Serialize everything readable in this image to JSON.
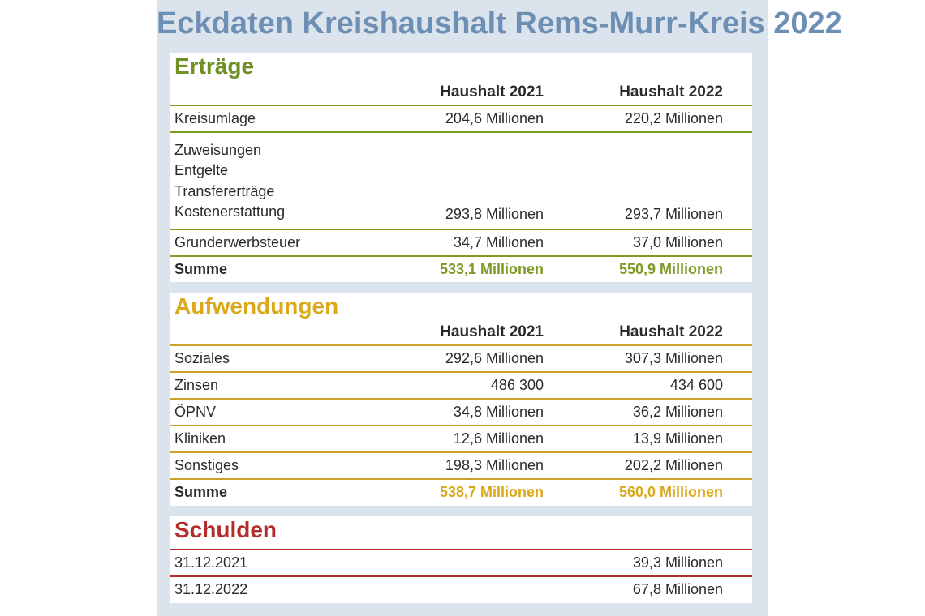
{
  "title": "Eckdaten Kreishaushalt Rems-Murr-Kreis 2022",
  "colors": {
    "title": "#6d8fb4",
    "ertraege": "#6f9024",
    "aufwendungen": "#d9a91a",
    "schulden": "#b32b2b",
    "background": "#dbe3ec"
  },
  "ertraege": {
    "heading": "Erträge",
    "col1": "Haushalt 2021",
    "col2": "Haushalt 2022",
    "rows": [
      {
        "label": "Kreisumlage",
        "v2021": "204,6 Millionen",
        "v2022": "220,2 Millionen"
      },
      {
        "labels": [
          "Zuweisungen",
          "Entgelte",
          "Transfererträge",
          "Kostenerstattung"
        ],
        "v2021": "293,8 Millionen",
        "v2022": "293,7 Millionen"
      },
      {
        "label": "Grunderwerbsteuer",
        "v2021": "34,7 Millionen",
        "v2022": "37,0 Millionen"
      }
    ],
    "sum": {
      "label": "Summe",
      "v2021": "533,1 Millionen",
      "v2022": "550,9 Millionen"
    }
  },
  "aufwendungen": {
    "heading": "Aufwendungen",
    "col1": "Haushalt 2021",
    "col2": "Haushalt 2022",
    "rows": [
      {
        "label": "Soziales",
        "v2021": "292,6 Millionen",
        "v2022": "307,3 Millionen"
      },
      {
        "label": "Zinsen",
        "v2021": "486 300",
        "v2022": "434 600"
      },
      {
        "label": "ÖPNV",
        "v2021": "34,8 Millionen",
        "v2022": "36,2 Millionen"
      },
      {
        "label": "Kliniken",
        "v2021": "12,6 Millionen",
        "v2022": "13,9 Millionen"
      },
      {
        "label": "Sonstiges",
        "v2021": "198,3 Millionen",
        "v2022": "202,2 Millionen"
      }
    ],
    "sum": {
      "label": "Summe",
      "v2021": "538,7 Millionen",
      "v2022": "560,0 Millionen"
    }
  },
  "schulden": {
    "heading": "Schulden",
    "rows": [
      {
        "label": "31.12.2021",
        "value": "39,3 Millionen"
      },
      {
        "label": "31.12.2022",
        "value": "67,8 Millionen"
      }
    ]
  }
}
